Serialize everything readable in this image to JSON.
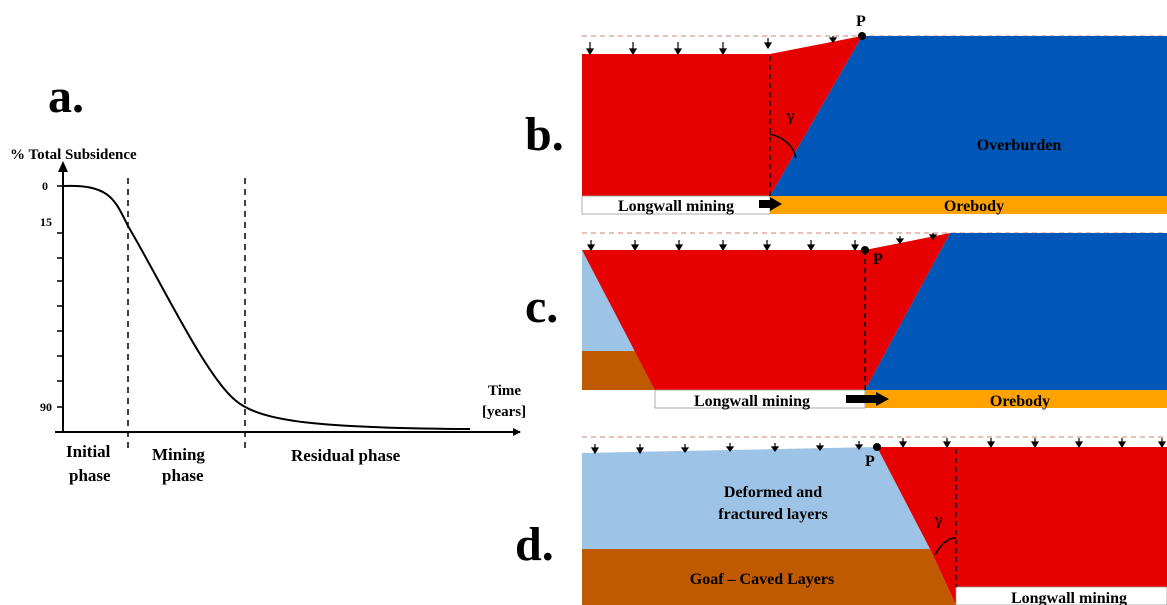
{
  "panels": {
    "a": {
      "letter": "a."
    },
    "b": {
      "letter": "b."
    },
    "c": {
      "letter": "c."
    },
    "d": {
      "letter": "d."
    }
  },
  "chart_data": {
    "type": "line",
    "title": "",
    "ylabel": "% Total Subsidence",
    "xlabel_line1": "Time",
    "xlabel_line2": "[years]",
    "y_ticks": [
      "0",
      "15",
      "90"
    ],
    "y_axis_inverted": true,
    "phase_boundaries_dashed": true,
    "phases": [
      {
        "line1": "Initial",
        "line2": "phase"
      },
      {
        "line1": "Mining",
        "line2": "phase"
      },
      {
        "line1": "Residual phase",
        "line2": ""
      }
    ],
    "series": [
      {
        "x_fraction": [
          0,
          0.07,
          0.14,
          0.3,
          0.43,
          0.55,
          1.0
        ],
        "subsidence_percent": [
          0,
          2,
          15,
          55,
          90,
          97,
          100
        ]
      }
    ]
  },
  "diagram_b": {
    "point_label": "P",
    "angle_label": "γ",
    "overburden_label": "Overburden",
    "longwall_label": "Longwall mining",
    "orebody_label": "Orebody"
  },
  "diagram_c": {
    "point_label": "P",
    "longwall_label": "Longwall mining",
    "orebody_label": "Orebody"
  },
  "diagram_d": {
    "point_label": "P",
    "angle_label": "γ",
    "deformed_line1": "Deformed and",
    "deformed_line2": "fractured layers",
    "goaf_label": "Goaf – Caved Layers",
    "longwall_label": "Longwall mining"
  },
  "colors": {
    "red_zone": "#e60000",
    "overburden_blue": "#0057b8",
    "orebody_orange": "#ffa200",
    "fractured_light_blue": "#9dc3e6",
    "goaf_brown": "#c05a00"
  }
}
